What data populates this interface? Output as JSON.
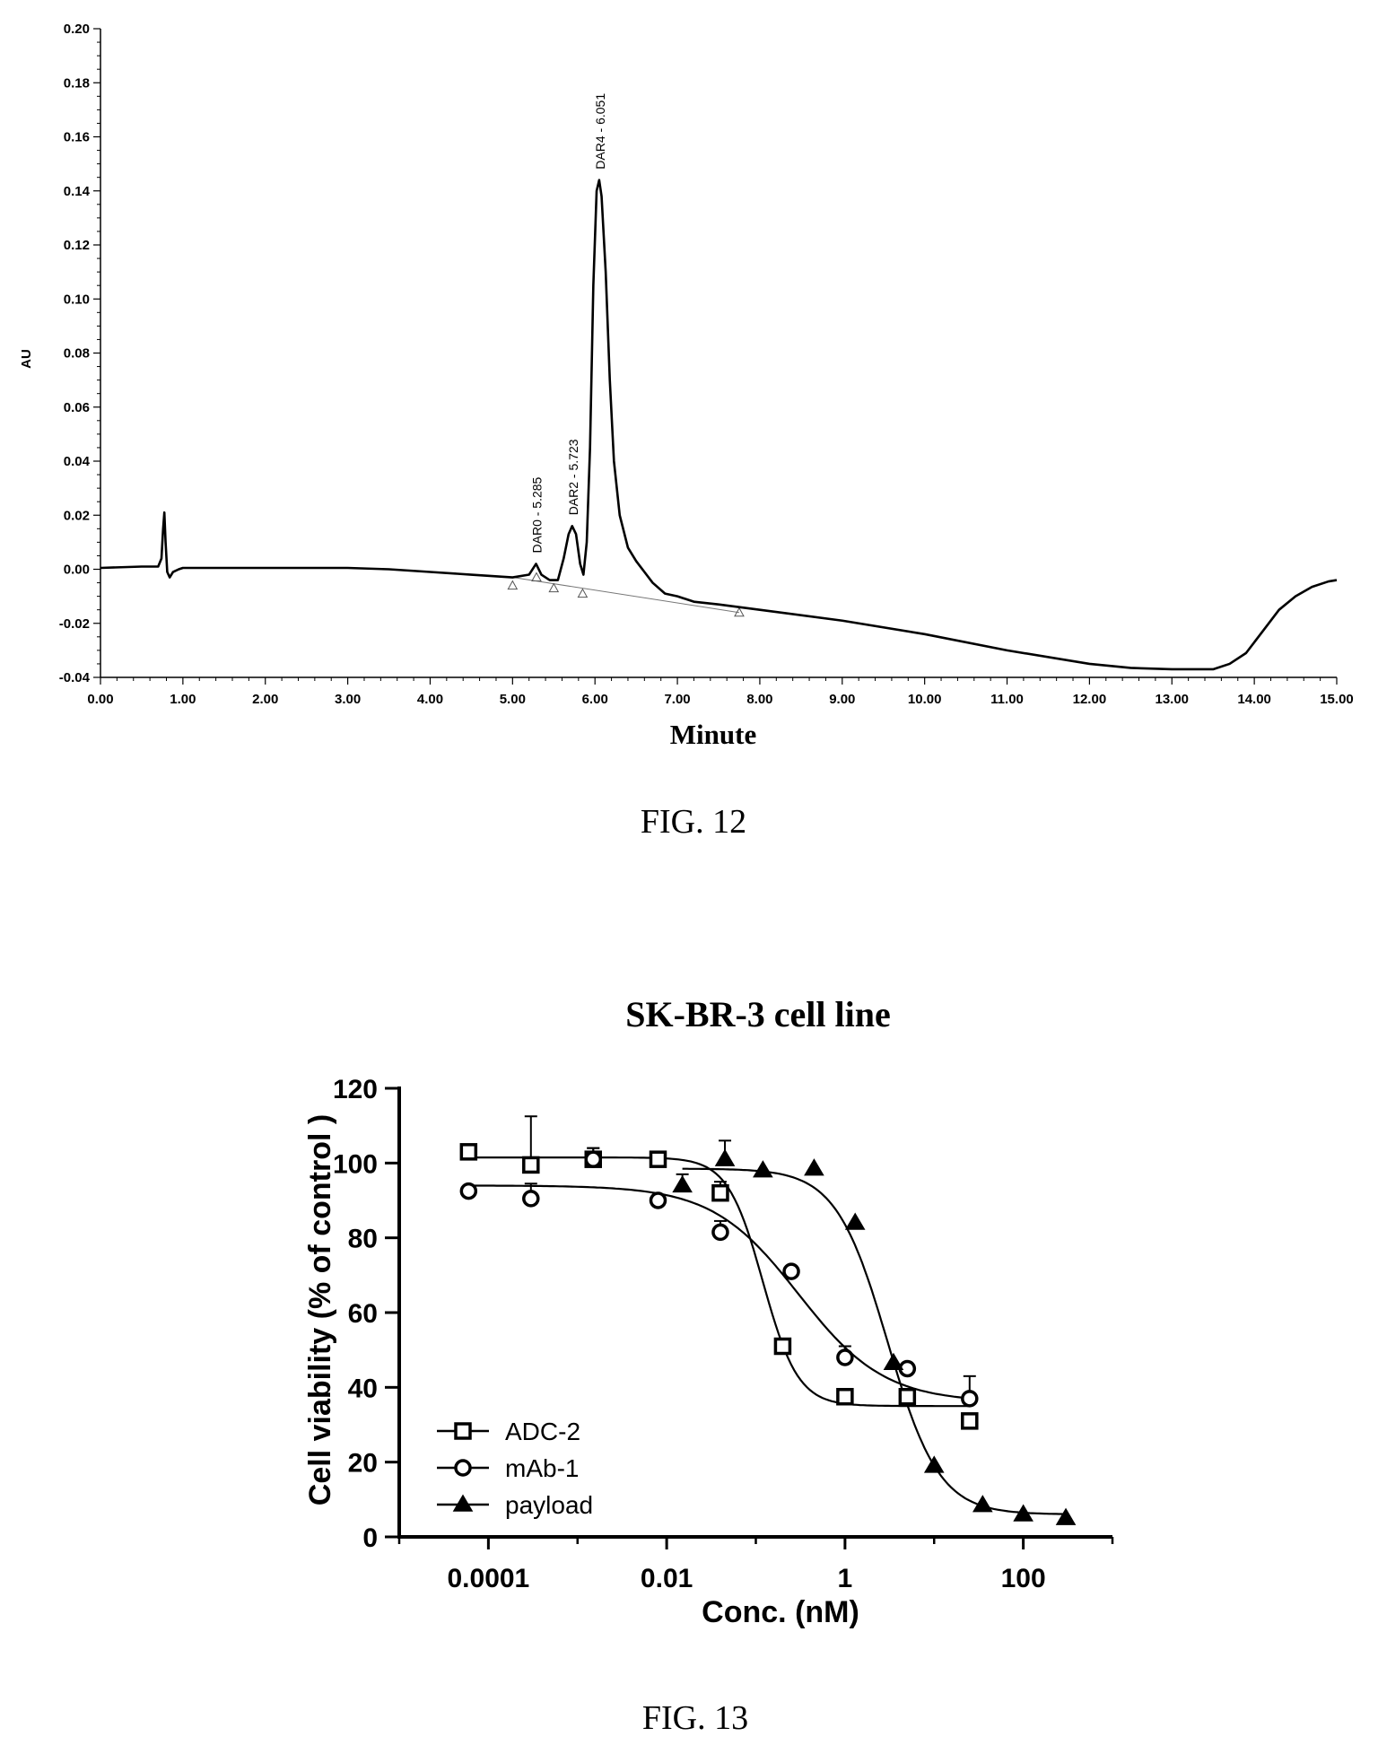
{
  "fig12": {
    "caption": "FIG. 12",
    "chart_data": {
      "type": "line",
      "xlabel": "Minute",
      "ylabel": "AU",
      "xlim": [
        0,
        15
      ],
      "ylim": [
        -0.04,
        0.2
      ],
      "x_ticks": [
        "0.00",
        "1.00",
        "2.00",
        "3.00",
        "4.00",
        "5.00",
        "6.00",
        "7.00",
        "8.00",
        "9.00",
        "10.00",
        "11.00",
        "12.00",
        "13.00",
        "14.00",
        "15.00"
      ],
      "y_ticks": [
        "-0.04",
        "-0.02",
        "0.00",
        "0.02",
        "0.04",
        "0.06",
        "0.08",
        "0.10",
        "0.12",
        "0.14",
        "0.16",
        "0.18",
        "0.20"
      ],
      "peaks": [
        {
          "label": "DAR0 - 5.285",
          "x": 5.285,
          "y": 0.002
        },
        {
          "label": "DAR2 - 5.723",
          "x": 5.723,
          "y": 0.016
        },
        {
          "label": "DAR4 - 6.051",
          "x": 6.051,
          "y": 0.144
        }
      ],
      "trace": [
        [
          0,
          0.0005
        ],
        [
          0.5,
          0.001
        ],
        [
          0.7,
          0.001
        ],
        [
          0.74,
          0.004
        ],
        [
          0.76,
          0.015
        ],
        [
          0.775,
          0.021
        ],
        [
          0.79,
          0.01
        ],
        [
          0.81,
          -0.001
        ],
        [
          0.84,
          -0.003
        ],
        [
          0.88,
          -0.001
        ],
        [
          0.95,
          0.0
        ],
        [
          1.0,
          0.0005
        ],
        [
          2.0,
          0.0005
        ],
        [
          3.0,
          0.0005
        ],
        [
          3.5,
          0.0
        ],
        [
          4.0,
          -0.001
        ],
        [
          4.5,
          -0.002
        ],
        [
          5.0,
          -0.003
        ],
        [
          5.2,
          -0.002
        ],
        [
          5.285,
          0.002
        ],
        [
          5.35,
          -0.002
        ],
        [
          5.45,
          -0.004
        ],
        [
          5.55,
          -0.004
        ],
        [
          5.62,
          0.004
        ],
        [
          5.68,
          0.013
        ],
        [
          5.723,
          0.016
        ],
        [
          5.77,
          0.013
        ],
        [
          5.82,
          0.002
        ],
        [
          5.86,
          -0.002
        ],
        [
          5.9,
          0.01
        ],
        [
          5.94,
          0.045
        ],
        [
          5.98,
          0.105
        ],
        [
          6.02,
          0.14
        ],
        [
          6.051,
          0.144
        ],
        [
          6.08,
          0.138
        ],
        [
          6.13,
          0.11
        ],
        [
          6.18,
          0.07
        ],
        [
          6.23,
          0.04
        ],
        [
          6.3,
          0.02
        ],
        [
          6.4,
          0.008
        ],
        [
          6.5,
          0.003
        ],
        [
          6.6,
          -0.001
        ],
        [
          6.7,
          -0.005
        ],
        [
          6.85,
          -0.009
        ],
        [
          7.0,
          -0.01
        ],
        [
          7.2,
          -0.012
        ],
        [
          7.5,
          -0.013
        ],
        [
          8.0,
          -0.015
        ],
        [
          9.0,
          -0.019
        ],
        [
          10.0,
          -0.024
        ],
        [
          11.0,
          -0.03
        ],
        [
          12.0,
          -0.035
        ],
        [
          12.5,
          -0.0365
        ],
        [
          13.0,
          -0.037
        ],
        [
          13.5,
          -0.037
        ],
        [
          13.7,
          -0.035
        ],
        [
          13.9,
          -0.031
        ],
        [
          14.1,
          -0.023
        ],
        [
          14.3,
          -0.015
        ],
        [
          14.5,
          -0.01
        ],
        [
          14.7,
          -0.0065
        ],
        [
          14.9,
          -0.0045
        ],
        [
          15.0,
          -0.004
        ]
      ],
      "baseline": [
        [
          5.0,
          -0.003
        ],
        [
          7.75,
          -0.016
        ]
      ],
      "peak_markers": [
        [
          5.0,
          -0.006
        ],
        [
          5.29,
          -0.003
        ],
        [
          5.5,
          -0.007
        ],
        [
          5.85,
          -0.009
        ],
        [
          7.75,
          -0.016
        ]
      ]
    }
  },
  "fig13": {
    "caption": "FIG. 13",
    "chart_data": {
      "type": "scatter",
      "title": "SK-BR-3 cell line",
      "xlabel": "Conc. (nM)",
      "ylabel": "Cell viability (% of control )",
      "x_scale": "log",
      "xlim": [
        1e-05,
        1000
      ],
      "ylim": [
        0,
        120
      ],
      "x_ticks": [
        {
          "value": 0.0001,
          "label": "0.0001"
        },
        {
          "value": 0.01,
          "label": "0.01"
        },
        {
          "value": 1,
          "label": "1"
        },
        {
          "value": 100,
          "label": "100"
        }
      ],
      "y_ticks": [
        "0",
        "20",
        "40",
        "60",
        "80",
        "100",
        "120"
      ],
      "series": [
        {
          "name": "ADC-2",
          "marker": "square",
          "points": [
            [
              6e-05,
              103,
              0
            ],
            [
              0.0003,
              99.5,
              13
            ],
            [
              0.0015,
              101,
              3
            ],
            [
              0.008,
              101,
              0
            ],
            [
              0.04,
              92,
              3
            ],
            [
              0.2,
              51,
              0
            ],
            [
              1.0,
              37.5,
              0
            ],
            [
              5.0,
              37.5,
              0
            ],
            [
              25,
              31,
              2
            ]
          ],
          "curve": {
            "top": 101.5,
            "bottom": 35,
            "ec50": 0.12,
            "hill": 2.2,
            "xrange": [
              6e-05,
              25
            ]
          }
        },
        {
          "name": "mAb-1",
          "marker": "circle",
          "points": [
            [
              6e-05,
              92.5,
              0
            ],
            [
              0.0003,
              90.5,
              4
            ],
            [
              0.0015,
              101,
              3
            ],
            [
              0.008,
              90,
              0
            ],
            [
              0.04,
              81.5,
              3
            ],
            [
              0.25,
              71,
              0
            ],
            [
              1.0,
              48,
              3
            ],
            [
              5.0,
              45,
              0
            ],
            [
              25,
              37,
              6
            ]
          ],
          "curve": {
            "top": 94,
            "bottom": 36,
            "ec50": 0.3,
            "hill": 0.9,
            "xrange": [
              6e-05,
              25
            ]
          }
        },
        {
          "name": "payload",
          "marker": "triangle",
          "points": [
            [
              0.015,
              94,
              3
            ],
            [
              0.045,
              101,
              5
            ],
            [
              0.12,
              98,
              0
            ],
            [
              0.45,
              98.5,
              0
            ],
            [
              1.3,
              84,
              0
            ],
            [
              3.5,
              46.5,
              0
            ],
            [
              10,
              19,
              0
            ],
            [
              35,
              8.5,
              0
            ],
            [
              100,
              6,
              0
            ],
            [
              300,
              5,
              0
            ]
          ],
          "curve": {
            "top": 98.5,
            "bottom": 6,
            "ec50": 3.0,
            "hill": 1.5,
            "xrange": [
              0.015,
              300
            ]
          }
        }
      ],
      "legend_position": "bottom-left"
    }
  }
}
